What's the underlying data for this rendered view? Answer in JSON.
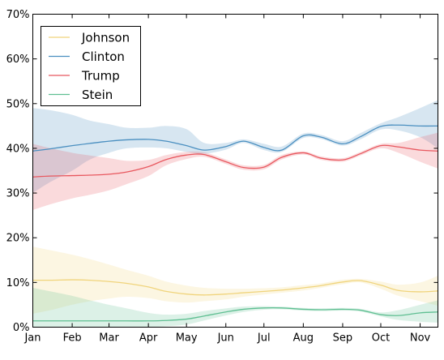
{
  "chart_data": {
    "type": "line",
    "title": "",
    "xlabel": "",
    "ylabel": "",
    "ylim": [
      0,
      70
    ],
    "yticks": [
      0,
      10,
      20,
      30,
      40,
      50,
      60,
      70
    ],
    "ytick_labels": [
      "0%",
      "10%",
      "20%",
      "30%",
      "40%",
      "50%",
      "60%",
      "70%"
    ],
    "xlim": [
      "2016-01-01",
      "2016-11-15"
    ],
    "xtick_labels": [
      "Jan",
      "Feb",
      "Mar",
      "Apr",
      "May",
      "Jun",
      "Jul",
      "Aug",
      "Sep",
      "Oct",
      "Nov"
    ],
    "xtick_dates": [
      "2016-01-01",
      "2016-02-01",
      "2016-03-01",
      "2016-04-01",
      "2016-05-01",
      "2016-06-01",
      "2016-07-01",
      "2016-08-01",
      "2016-09-01",
      "2016-10-01",
      "2016-11-01"
    ],
    "grid": false,
    "legend": "top-left",
    "x": [
      "2016-01-01",
      "2016-01-15",
      "2016-02-01",
      "2016-02-15",
      "2016-03-01",
      "2016-03-15",
      "2016-04-01",
      "2016-04-15",
      "2016-05-01",
      "2016-05-15",
      "2016-06-01",
      "2016-06-15",
      "2016-07-01",
      "2016-07-15",
      "2016-08-01",
      "2016-08-15",
      "2016-09-01",
      "2016-09-15",
      "2016-10-01",
      "2016-10-15",
      "2016-11-01",
      "2016-11-15"
    ],
    "series": [
      {
        "name": "Johnson",
        "color": "#f0d47c",
        "values": [
          10.5,
          10.5,
          10.6,
          10.5,
          10.2,
          9.8,
          9.0,
          8.0,
          7.4,
          7.2,
          7.4,
          7.7,
          8.0,
          8.3,
          8.8,
          9.3,
          10.1,
          10.4,
          9.4,
          8.2,
          7.9,
          8.1
        ],
        "upper": [
          18.0,
          17.2,
          16.2,
          15.2,
          14.0,
          12.8,
          11.5,
          10.2,
          9.3,
          8.8,
          8.6,
          8.6,
          8.7,
          8.9,
          9.4,
          9.8,
          10.6,
          10.8,
          10.2,
          9.5,
          10.0,
          11.5
        ],
        "lower": [
          3.0,
          3.8,
          5.0,
          5.8,
          6.4,
          6.8,
          6.5,
          5.8,
          5.5,
          5.8,
          6.2,
          6.8,
          7.3,
          7.7,
          8.2,
          8.8,
          9.6,
          10.0,
          8.6,
          7.0,
          5.8,
          4.8
        ]
      },
      {
        "name": "Clinton",
        "color": "#4a8fc0",
        "values": [
          39.4,
          39.9,
          40.6,
          41.1,
          41.6,
          41.9,
          42.0,
          41.6,
          40.6,
          39.6,
          40.4,
          41.6,
          40.2,
          39.6,
          42.8,
          42.5,
          41.0,
          42.6,
          44.9,
          45.2,
          45.0,
          45.0
        ],
        "upper": [
          49.0,
          48.5,
          47.5,
          46.2,
          45.4,
          44.6,
          44.6,
          45.0,
          44.3,
          41.2,
          41.2,
          42.0,
          41.0,
          40.4,
          43.3,
          43.0,
          41.6,
          43.4,
          45.6,
          47.0,
          49.0,
          50.8
        ],
        "lower": [
          30.0,
          32.5,
          35.0,
          37.5,
          39.0,
          40.0,
          40.2,
          40.0,
          39.2,
          38.8,
          39.7,
          41.2,
          39.6,
          39.2,
          42.3,
          42.1,
          40.6,
          42.0,
          44.2,
          44.0,
          42.5,
          40.0
        ]
      },
      {
        "name": "Trump",
        "color": "#e8585f",
        "values": [
          33.6,
          33.8,
          33.9,
          34.0,
          34.2,
          34.7,
          35.9,
          37.5,
          38.5,
          38.6,
          37.0,
          35.7,
          35.8,
          38.0,
          39.0,
          37.8,
          37.4,
          38.8,
          40.6,
          40.3,
          39.6,
          39.4
        ],
        "upper": [
          41.0,
          40.0,
          39.0,
          38.4,
          37.8,
          37.2,
          37.4,
          38.5,
          39.2,
          39.1,
          37.5,
          36.2,
          36.3,
          38.5,
          39.3,
          38.2,
          37.8,
          39.2,
          41.0,
          41.2,
          42.5,
          43.5
        ],
        "lower": [
          26.2,
          27.5,
          28.8,
          29.6,
          30.6,
          32.0,
          33.8,
          36.2,
          37.6,
          38.1,
          36.5,
          35.2,
          35.3,
          37.5,
          38.6,
          37.4,
          37.0,
          38.4,
          40.0,
          39.0,
          37.0,
          35.5
        ]
      },
      {
        "name": "Stein",
        "color": "#5fbf92",
        "values": [
          1.4,
          1.4,
          1.4,
          1.4,
          1.4,
          1.4,
          1.4,
          1.5,
          1.8,
          2.5,
          3.4,
          4.0,
          4.3,
          4.3,
          4.0,
          3.9,
          4.0,
          3.8,
          2.8,
          2.6,
          3.2,
          3.4
        ],
        "upper": [
          8.8,
          8.0,
          7.0,
          6.0,
          5.0,
          4.2,
          3.2,
          2.8,
          3.0,
          3.6,
          4.2,
          4.6,
          4.7,
          4.6,
          4.3,
          4.2,
          4.3,
          4.1,
          3.3,
          3.8,
          5.0,
          6.0
        ],
        "lower": [
          0.0,
          0.0,
          0.0,
          0.0,
          0.0,
          0.0,
          0.0,
          0.2,
          0.6,
          1.5,
          2.6,
          3.4,
          3.9,
          4.0,
          3.7,
          3.6,
          3.7,
          3.5,
          2.4,
          1.6,
          1.2,
          1.0
        ]
      }
    ]
  }
}
